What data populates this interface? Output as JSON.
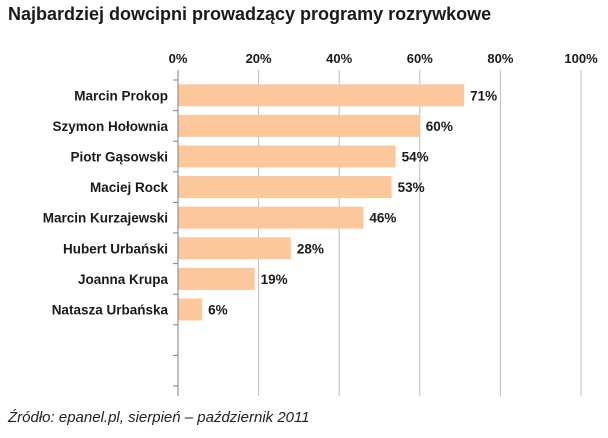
{
  "chart_data": {
    "type": "bar",
    "orientation": "horizontal",
    "title": "Najbardziej dowcipni prowadzący programy rozrywkowe",
    "categories": [
      "Marcin Prokop",
      "Szymon Hołownia",
      "Piotr Gąsowski",
      "Maciej Rock",
      "Marcin Kurzajewski",
      "Hubert Urbański",
      "Joanna Krupa",
      "Natasza Urbańska"
    ],
    "values": [
      71,
      60,
      54,
      53,
      46,
      28,
      19,
      6
    ],
    "value_labels": [
      "71%",
      "60%",
      "54%",
      "53%",
      "46%",
      "28%",
      "19%",
      "6%"
    ],
    "xlim": [
      0,
      100
    ],
    "xticks": [
      0,
      20,
      40,
      60,
      80,
      100
    ],
    "xtick_labels": [
      "0%",
      "20%",
      "40%",
      "60%",
      "80%",
      "100%"
    ],
    "xaxis_position": "top",
    "grid": true,
    "empty_slots": 2,
    "bar_color": "#fcc89b",
    "source": "Źródło: epanel.pl, sierpień – październik 2011"
  }
}
